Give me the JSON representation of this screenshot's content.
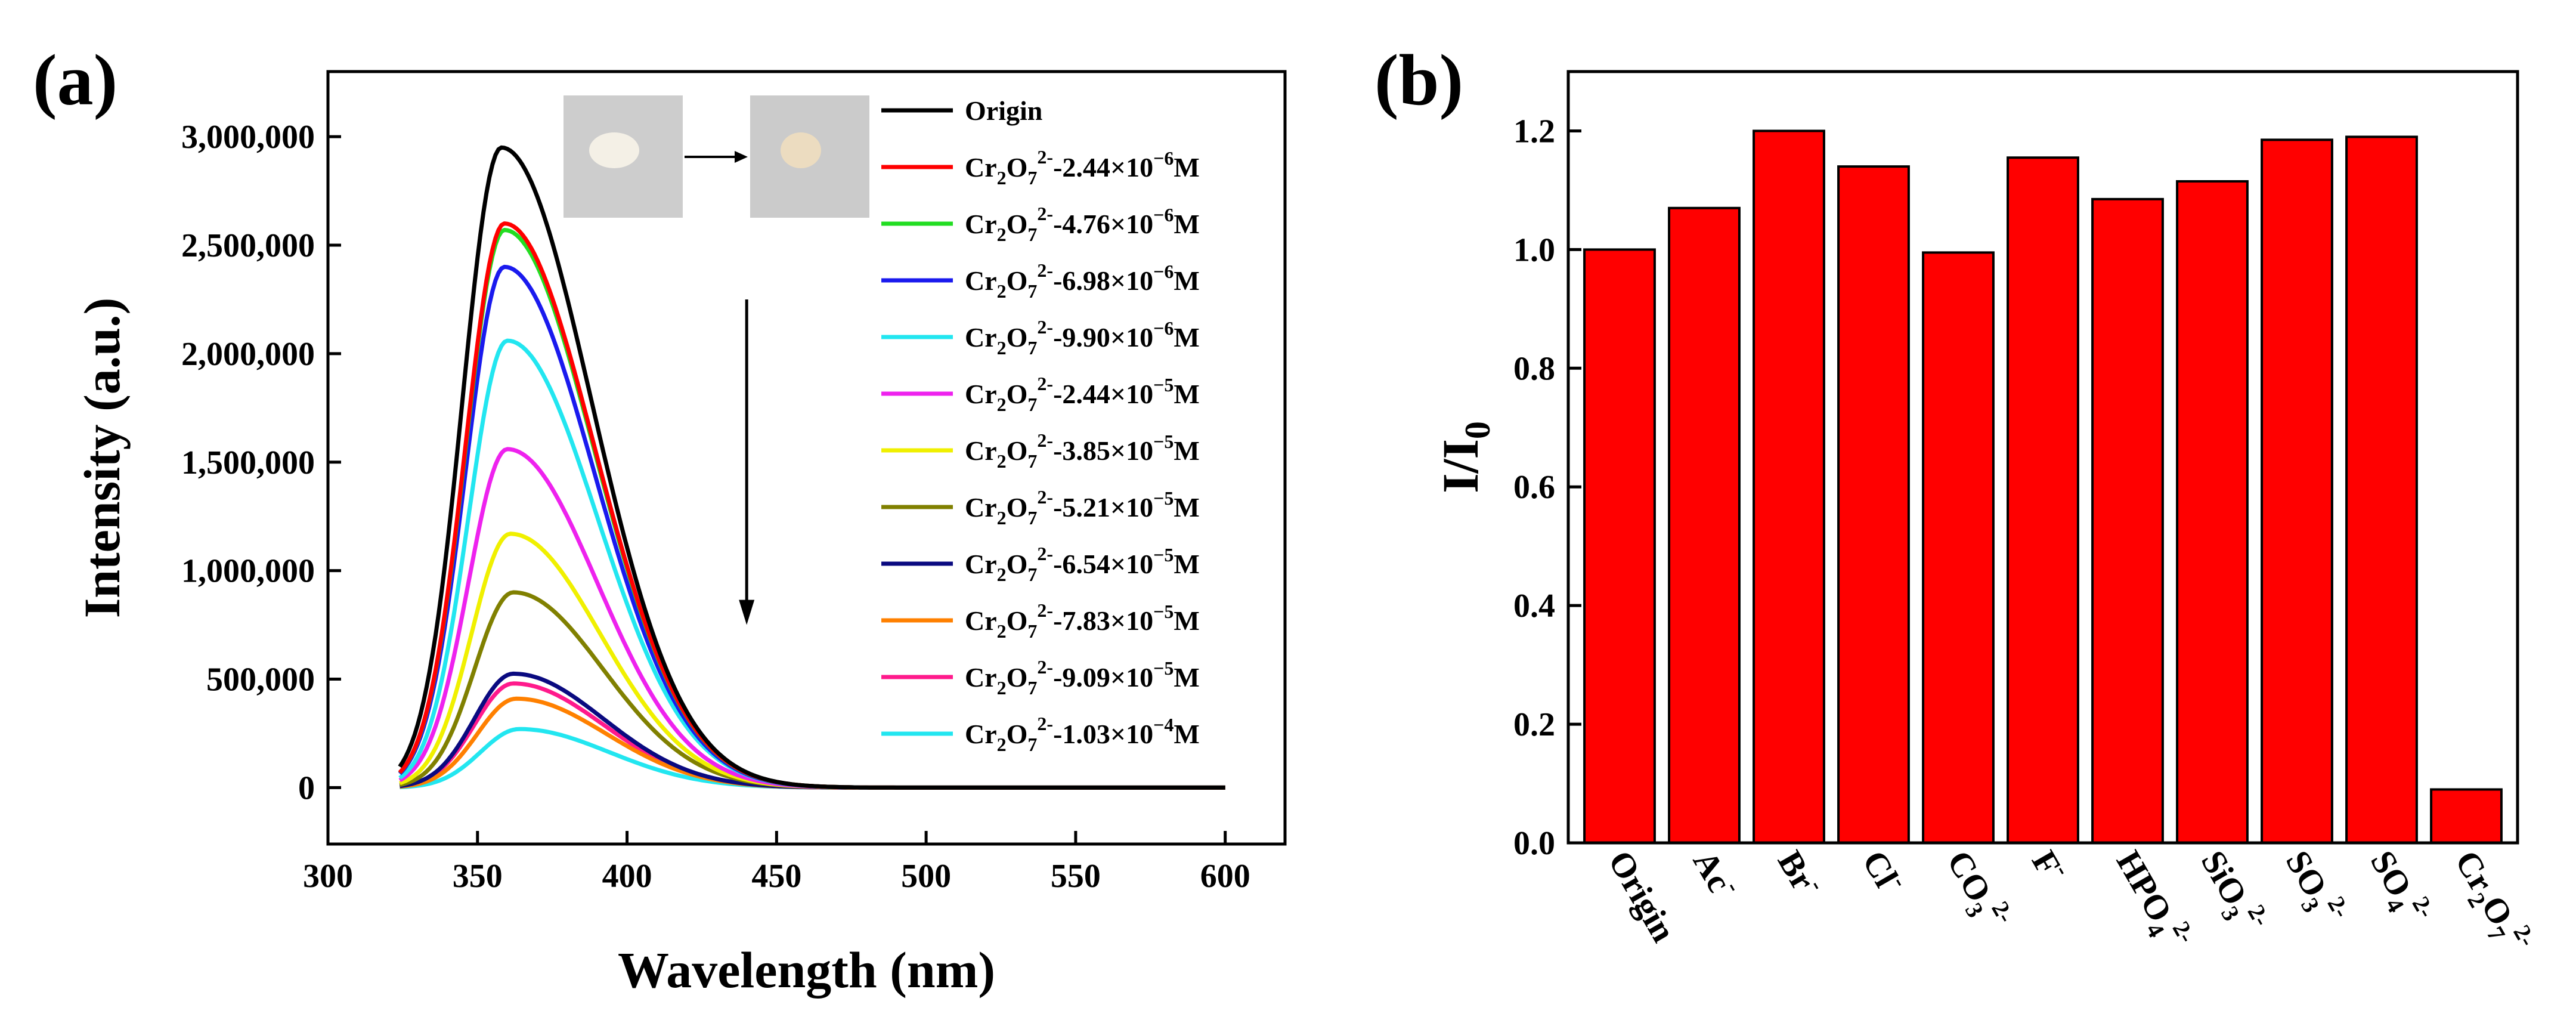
{
  "figure": {
    "panel_a_label": "(a)",
    "panel_b_label": "(b)",
    "inset_photos": [
      {
        "name": "before",
        "color": "#cdcdcd",
        "spot": "#f4f0e6"
      },
      {
        "name": "after",
        "color": "#cbcbcb",
        "spot": "#ecdcc0"
      }
    ]
  },
  "chart_data": [
    {
      "type": "line",
      "panel": "a",
      "title": "",
      "xlabel": "Wavelength (nm)",
      "ylabel": "Intensity (a.u.)",
      "xlim": [
        300,
        620
      ],
      "ylim": [
        -260000,
        3300000
      ],
      "xticks": [
        300,
        350,
        400,
        450,
        500,
        550,
        600
      ],
      "yticks": [
        0,
        500000,
        1000000,
        1500000,
        2000000,
        2500000,
        3000000
      ],
      "ytick_labels": [
        "0",
        "500,000",
        "1,000,000",
        "1,500,000",
        "2,000,000",
        "2,500,000",
        "3,000,000"
      ],
      "x_range": [
        324,
        600
      ],
      "legend_position": "top-right",
      "arrow": {
        "direction": "down",
        "x": 440,
        "y_start": 2250000,
        "y_end": 750000
      },
      "series": [
        {
          "name": "Origin",
          "color": "#000000",
          "peak_x": 358,
          "peak": 2950000
        },
        {
          "name": "Cr2O7 2- 2.44e-6 M",
          "base": "Cr",
          "sub": "2",
          "mid": "O",
          "sub2": "7",
          "sup": "2-",
          "conc": "-2.44×10",
          "exp": "−6",
          "unit": "M",
          "color": "#ff0000",
          "peak_x": 359,
          "peak": 2600000
        },
        {
          "name": "Cr2O7 2- 4.76e-6 M",
          "base": "Cr",
          "sub": "2",
          "mid": "O",
          "sub2": "7",
          "sup": "2-",
          "conc": "-4.76×10",
          "exp": "−6",
          "unit": "M",
          "color": "#22dd22",
          "peak_x": 359,
          "peak": 2570000
        },
        {
          "name": "Cr2O7 2- 6.98e-6 M",
          "base": "Cr",
          "sub": "2",
          "mid": "O",
          "sub2": "7",
          "sup": "2-",
          "conc": "-6.98×10",
          "exp": "−6",
          "unit": "M",
          "color": "#1a1aee",
          "peak_x": 359,
          "peak": 2400000
        },
        {
          "name": "Cr2O7 2- 9.90e-6 M",
          "base": "Cr",
          "sub": "2",
          "mid": "O",
          "sub2": "7",
          "sup": "2-",
          "conc": "-9.90×10",
          "exp": "−6",
          "unit": "M",
          "color": "#22e6f0",
          "peak_x": 360,
          "peak": 2060000
        },
        {
          "name": "Cr2O7 2- 2.44e-5 M",
          "base": "Cr",
          "sub": "2",
          "mid": "O",
          "sub2": "7",
          "sup": "2-",
          "conc": "-2.44×10",
          "exp": "−5",
          "unit": "M",
          "color": "#ee22ee",
          "peak_x": 360,
          "peak": 1560000
        },
        {
          "name": "Cr2O7 2- 3.85e-5 M",
          "base": "Cr",
          "sub": "2",
          "mid": "O",
          "sub2": "7",
          "sup": "2-",
          "conc": "-3.85×10",
          "exp": "−5",
          "unit": "M",
          "color": "#f0f000",
          "peak_x": 361,
          "peak": 1170000
        },
        {
          "name": "Cr2O7 2- 5.21e-5 M",
          "base": "Cr",
          "sub": "2",
          "mid": "O",
          "sub2": "7",
          "sup": "2-",
          "conc": "-5.21×10",
          "exp": "−5",
          "unit": "M",
          "color": "#808000",
          "peak_x": 362,
          "peak": 900000
        },
        {
          "name": "Cr2O7 2- 6.54e-5 M",
          "base": "Cr",
          "sub": "2",
          "mid": "O",
          "sub2": "7",
          "sup": "2-",
          "conc": "-6.54×10",
          "exp": "−5",
          "unit": "M",
          "color": "#0a0a80",
          "peak_x": 362,
          "peak": 525000
        },
        {
          "name": "Cr2O7 2- 7.83e-5 M",
          "base": "Cr",
          "sub": "2",
          "mid": "O",
          "sub2": "7",
          "sup": "2-",
          "conc": "-7.83×10",
          "exp": "−5",
          "unit": "M",
          "color": "#ff8000",
          "peak_x": 363,
          "peak": 410000
        },
        {
          "name": "Cr2O7 2- 9.09e-5 M",
          "base": "Cr",
          "sub": "2",
          "mid": "O",
          "sub2": "7",
          "sup": "2-",
          "conc": "-9.09×10",
          "exp": "−5",
          "unit": "M",
          "color": "#ff1a8c",
          "peak_x": 362,
          "peak": 480000
        },
        {
          "name": "Cr2O7 2- 1.03e-4 M",
          "base": "Cr",
          "sub": "2",
          "mid": "O",
          "sub2": "7",
          "sup": "2-",
          "conc": "-1.03×10",
          "exp": "−4",
          "unit": "M",
          "color": "#22e6f0",
          "peak_x": 364,
          "peak": 270000
        }
      ]
    },
    {
      "type": "bar",
      "panel": "b",
      "title": "",
      "xlabel": "",
      "ylabel_main": "I/I",
      "ylabel_sub": "0",
      "ylim": [
        0,
        1.3
      ],
      "yticks": [
        0.0,
        0.2,
        0.4,
        0.6,
        0.8,
        1.0,
        1.2
      ],
      "bar_color": "#ff0000",
      "categories": [
        {
          "main": "Origin",
          "sub": "",
          "sup": ""
        },
        {
          "main": "Ac",
          "sub": "",
          "sup": "-"
        },
        {
          "main": "Br",
          "sub": "",
          "sup": "-"
        },
        {
          "main": "Cl",
          "sub": "",
          "sup": "-"
        },
        {
          "main": "CO",
          "sub": "3",
          "sup": "2-"
        },
        {
          "main": "F",
          "sub": "",
          "sup": "-"
        },
        {
          "main": "HPO",
          "sub": "4",
          "sup": "2-"
        },
        {
          "main": "SiO",
          "sub": "3",
          "sup": "2-"
        },
        {
          "main": "SO",
          "sub": "3",
          "sup": "2-"
        },
        {
          "main": "SO",
          "sub": "4",
          "sup": "2-"
        },
        {
          "main": "Cr",
          "sub": "2",
          "main2": "O",
          "sub2": "7",
          "sup": "2-"
        }
      ],
      "values": [
        1.0,
        1.07,
        1.2,
        1.14,
        0.995,
        1.155,
        1.085,
        1.115,
        1.185,
        1.19,
        0.09
      ]
    }
  ]
}
